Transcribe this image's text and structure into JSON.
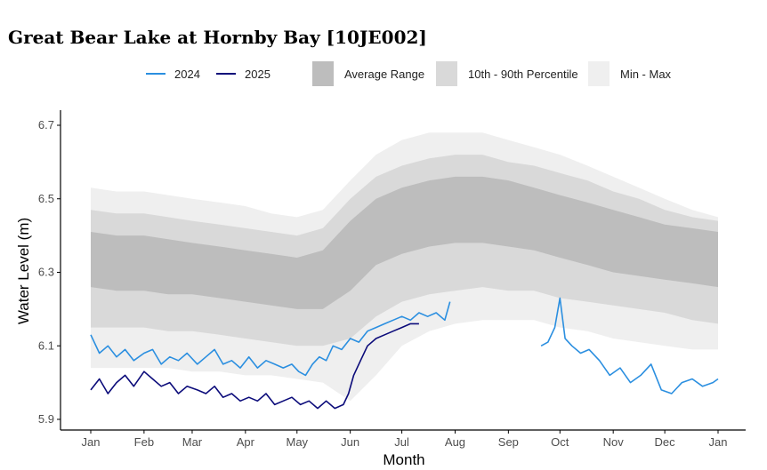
{
  "page": {
    "title": "Great Bear Lake at Hornby Bay [10JE002]"
  },
  "legend": {
    "items": [
      {
        "label": "2024",
        "kind": "line",
        "color": "#2b8fe0"
      },
      {
        "label": "2025",
        "kind": "line",
        "color": "#0b0b7a"
      },
      {
        "label": "Average Range",
        "kind": "box",
        "color": "#bdbdbd"
      },
      {
        "label": "10th - 90th Percentile",
        "kind": "box",
        "color": "#d9d9d9"
      },
      {
        "label": "Min - Max",
        "kind": "box",
        "color": "#efefef"
      }
    ]
  },
  "chart_data": {
    "type": "line",
    "title": "Great Bear Lake at Hornby Bay [10JE002]",
    "xlabel": "Month",
    "ylabel": "Water Level (m)",
    "ylim": [
      5.88,
      6.72
    ],
    "yticks": [
      5.9,
      6.1,
      6.3,
      6.5,
      6.7
    ],
    "ytick_labels": [
      "5.9",
      "6.1",
      "6.3",
      "6.5",
      "6.7"
    ],
    "xlim": [
      -6,
      372
    ],
    "xticks": [
      {
        "label": "Jan",
        "day": 0
      },
      {
        "label": "Feb",
        "day": 31
      },
      {
        "label": "Mar",
        "day": 59
      },
      {
        "label": "Apr",
        "day": 90
      },
      {
        "label": "May",
        "day": 120
      },
      {
        "label": "Jun",
        "day": 151
      },
      {
        "label": "Jul",
        "day": 181
      },
      {
        "label": "Aug",
        "day": 212
      },
      {
        "label": "Sep",
        "day": 243
      },
      {
        "label": "Oct",
        "day": 273
      },
      {
        "label": "Nov",
        "day": 304
      },
      {
        "label": "Dec",
        "day": 334
      },
      {
        "label": "Jan",
        "day": 365
      }
    ],
    "bands": [
      {
        "name": "Min - Max",
        "color": "#efefef",
        "x": [
          0,
          15,
          31,
          45,
          59,
          75,
          90,
          105,
          120,
          135,
          151,
          166,
          181,
          197,
          212,
          228,
          243,
          258,
          273,
          289,
          304,
          319,
          334,
          350,
          365
        ],
        "lower": [
          6.04,
          6.04,
          6.04,
          6.04,
          6.03,
          6.03,
          6.02,
          6.02,
          6.01,
          6.0,
          5.95,
          6.02,
          6.1,
          6.14,
          6.16,
          6.17,
          6.17,
          6.17,
          6.15,
          6.14,
          6.12,
          6.11,
          6.1,
          6.09,
          6.09
        ],
        "upper": [
          6.53,
          6.52,
          6.52,
          6.51,
          6.5,
          6.49,
          6.48,
          6.46,
          6.45,
          6.47,
          6.55,
          6.62,
          6.66,
          6.68,
          6.68,
          6.68,
          6.66,
          6.64,
          6.62,
          6.59,
          6.56,
          6.53,
          6.5,
          6.47,
          6.45
        ]
      },
      {
        "name": "10th - 90th Percentile",
        "color": "#d9d9d9",
        "x": [
          0,
          15,
          31,
          45,
          59,
          75,
          90,
          105,
          120,
          135,
          151,
          166,
          181,
          197,
          212,
          228,
          243,
          258,
          273,
          289,
          304,
          319,
          334,
          350,
          365
        ],
        "lower": [
          6.15,
          6.15,
          6.15,
          6.14,
          6.14,
          6.13,
          6.12,
          6.11,
          6.1,
          6.1,
          6.12,
          6.18,
          6.22,
          6.24,
          6.25,
          6.26,
          6.25,
          6.25,
          6.23,
          6.22,
          6.21,
          6.2,
          6.19,
          6.17,
          6.16
        ],
        "upper": [
          6.47,
          6.46,
          6.46,
          6.45,
          6.44,
          6.43,
          6.42,
          6.41,
          6.4,
          6.42,
          6.5,
          6.56,
          6.59,
          6.61,
          6.62,
          6.62,
          6.6,
          6.59,
          6.57,
          6.55,
          6.52,
          6.5,
          6.47,
          6.45,
          6.44
        ]
      },
      {
        "name": "Average Range",
        "color": "#bdbdbd",
        "x": [
          0,
          15,
          31,
          45,
          59,
          75,
          90,
          105,
          120,
          135,
          151,
          166,
          181,
          197,
          212,
          228,
          243,
          258,
          273,
          289,
          304,
          319,
          334,
          350,
          365
        ],
        "lower": [
          6.26,
          6.25,
          6.25,
          6.24,
          6.24,
          6.23,
          6.22,
          6.21,
          6.2,
          6.2,
          6.25,
          6.32,
          6.35,
          6.37,
          6.38,
          6.38,
          6.37,
          6.36,
          6.34,
          6.32,
          6.3,
          6.29,
          6.28,
          6.27,
          6.26
        ],
        "upper": [
          6.41,
          6.4,
          6.4,
          6.39,
          6.38,
          6.37,
          6.36,
          6.35,
          6.34,
          6.36,
          6.44,
          6.5,
          6.53,
          6.55,
          6.56,
          6.56,
          6.55,
          6.53,
          6.51,
          6.49,
          6.47,
          6.45,
          6.43,
          6.42,
          6.41
        ]
      }
    ],
    "series": [
      {
        "name": "2024",
        "color": "#2b8fe0",
        "segments": [
          {
            "x": [
              0,
              5,
              10,
              15,
              20,
              25,
              31,
              36,
              41,
              46,
              51,
              56,
              62,
              67,
              72,
              77,
              82,
              87,
              92,
              97,
              102,
              107,
              112,
              117,
              121,
              125,
              129,
              133,
              137,
              141,
              146,
              151,
              156,
              161,
              166,
              171,
              176,
              181,
              186,
              191,
              196,
              201,
              206,
              209
            ],
            "y": [
              6.13,
              6.08,
              6.1,
              6.07,
              6.09,
              6.06,
              6.08,
              6.09,
              6.05,
              6.07,
              6.06,
              6.08,
              6.05,
              6.07,
              6.09,
              6.05,
              6.06,
              6.04,
              6.07,
              6.04,
              6.06,
              6.05,
              6.04,
              6.05,
              6.03,
              6.02,
              6.05,
              6.07,
              6.06,
              6.1,
              6.09,
              6.12,
              6.11,
              6.14,
              6.15,
              6.16,
              6.17,
              6.18,
              6.17,
              6.19,
              6.18,
              6.19,
              6.17,
              6.22
            ]
          },
          {
            "x": [
              262,
              266,
              270,
              273,
              276,
              280,
              285,
              290,
              296,
              302,
              308,
              314,
              320,
              326,
              332,
              338,
              344,
              350,
              356,
              362,
              365
            ],
            "y": [
              6.1,
              6.11,
              6.15,
              6.23,
              6.12,
              6.1,
              6.08,
              6.09,
              6.06,
              6.02,
              6.04,
              6.0,
              6.02,
              6.05,
              5.98,
              5.97,
              6.0,
              6.01,
              5.99,
              6.0,
              6.01
            ]
          }
        ]
      },
      {
        "name": "2025",
        "color": "#0b0b7a",
        "segments": [
          {
            "x": [
              0,
              5,
              10,
              15,
              20,
              25,
              31,
              36,
              41,
              46,
              51,
              56,
              62,
              67,
              72,
              77,
              82,
              87,
              92,
              97,
              102,
              107,
              112,
              117,
              122,
              127,
              132,
              137,
              142,
              147,
              150,
              153,
              157,
              161,
              166,
              171,
              176,
              181,
              186,
              191
            ],
            "y": [
              5.98,
              6.01,
              5.97,
              6.0,
              6.02,
              5.99,
              6.03,
              6.01,
              5.99,
              6.0,
              5.97,
              5.99,
              5.98,
              5.97,
              5.99,
              5.96,
              5.97,
              5.95,
              5.96,
              5.95,
              5.97,
              5.94,
              5.95,
              5.96,
              5.94,
              5.95,
              5.93,
              5.95,
              5.93,
              5.94,
              5.97,
              6.02,
              6.06,
              6.1,
              6.12,
              6.13,
              6.14,
              6.15,
              6.16,
              6.16
            ]
          }
        ]
      }
    ]
  }
}
